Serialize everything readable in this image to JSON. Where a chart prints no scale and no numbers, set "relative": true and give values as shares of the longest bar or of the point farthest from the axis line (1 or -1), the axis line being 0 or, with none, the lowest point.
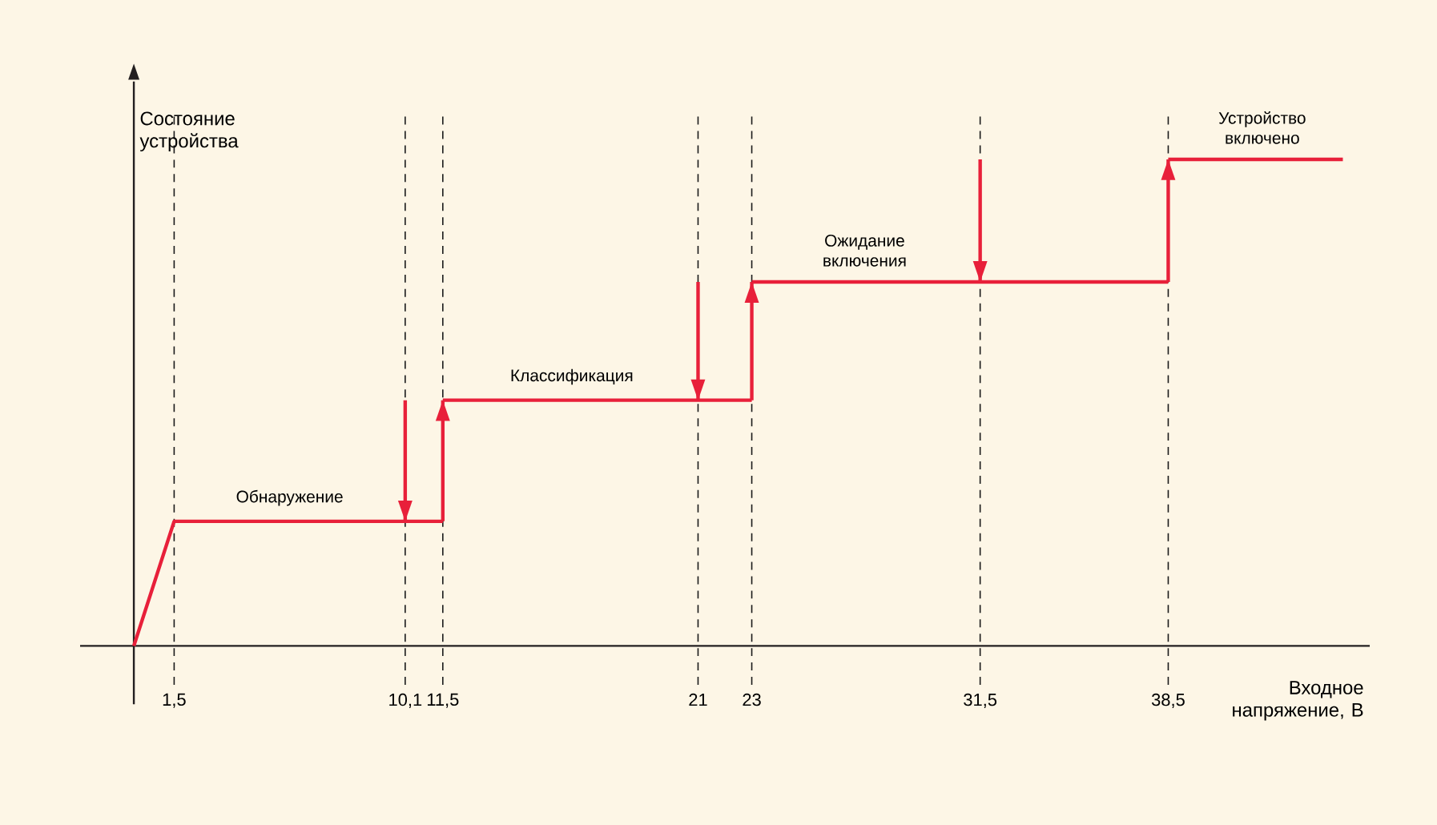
{
  "chart_data": {
    "type": "line",
    "relative": true,
    "xlabel": "Входное напряжение, В",
    "ylabel": "Состояние устройства",
    "xlim": [
      -2,
      46
    ],
    "xticks": [
      {
        "value": 1.5,
        "label": "1,5"
      },
      {
        "value": 10.1,
        "label": "10,1"
      },
      {
        "value": 11.5,
        "label": "11,5"
      },
      21,
      23,
      {
        "value": 31.5,
        "label": "31,5"
      },
      {
        "value": 38.5,
        "label": "38,5"
      }
    ],
    "series": [
      {
        "color": "#e8203a",
        "x": [
          0,
          1.5,
          11.5,
          null,
          11.5,
          11.5,
          null,
          11.5,
          23,
          null,
          23,
          23,
          null,
          23,
          38.5,
          null,
          38.5,
          38.5,
          null,
          38.5,
          45,
          null,
          10.1,
          10.1,
          null,
          21,
          21,
          null,
          31.5,
          31.5
        ],
        "values": [
          0,
          0.256,
          0.256,
          null,
          0.256,
          0.505,
          null,
          0.505,
          0.505,
          null,
          0.505,
          0.748,
          null,
          0.748,
          0.748,
          null,
          0.748,
          1,
          null,
          1,
          1,
          null,
          0.505,
          0.256,
          null,
          0.748,
          0.505,
          null,
          1,
          0.748
        ]
      }
    ],
    "ref_lines": [
      {
        "axis": "x",
        "value": 1.5,
        "color": "#1a1a1a",
        "line_style": "dashed"
      },
      {
        "axis": "x",
        "value": 10.1,
        "color": "#1a1a1a",
        "line_style": "dashed"
      },
      {
        "axis": "x",
        "value": 11.5,
        "color": "#1a1a1a",
        "line_style": "dashed"
      },
      {
        "axis": "x",
        "value": 21,
        "color": "#1a1a1a",
        "line_style": "dashed"
      },
      {
        "axis": "x",
        "value": 23,
        "color": "#1a1a1a",
        "line_style": "dashed"
      },
      {
        "axis": "x",
        "value": 31.5,
        "color": "#1a1a1a",
        "line_style": "dashed"
      },
      {
        "axis": "x",
        "value": 38.5,
        "color": "#1a1a1a",
        "line_style": "dashed"
      }
    ],
    "annotations": [
      {
        "text": "Обнаружение",
        "x": 5.8,
        "y": 0.256
      },
      {
        "text": "Классификация",
        "x": 16.3,
        "y": 0.505
      },
      {
        "text": "Ожидание включения",
        "x": 27.2,
        "y": 0.748
      },
      {
        "text": "Устройство включено",
        "x": 42,
        "y": 1
      }
    ]
  }
}
